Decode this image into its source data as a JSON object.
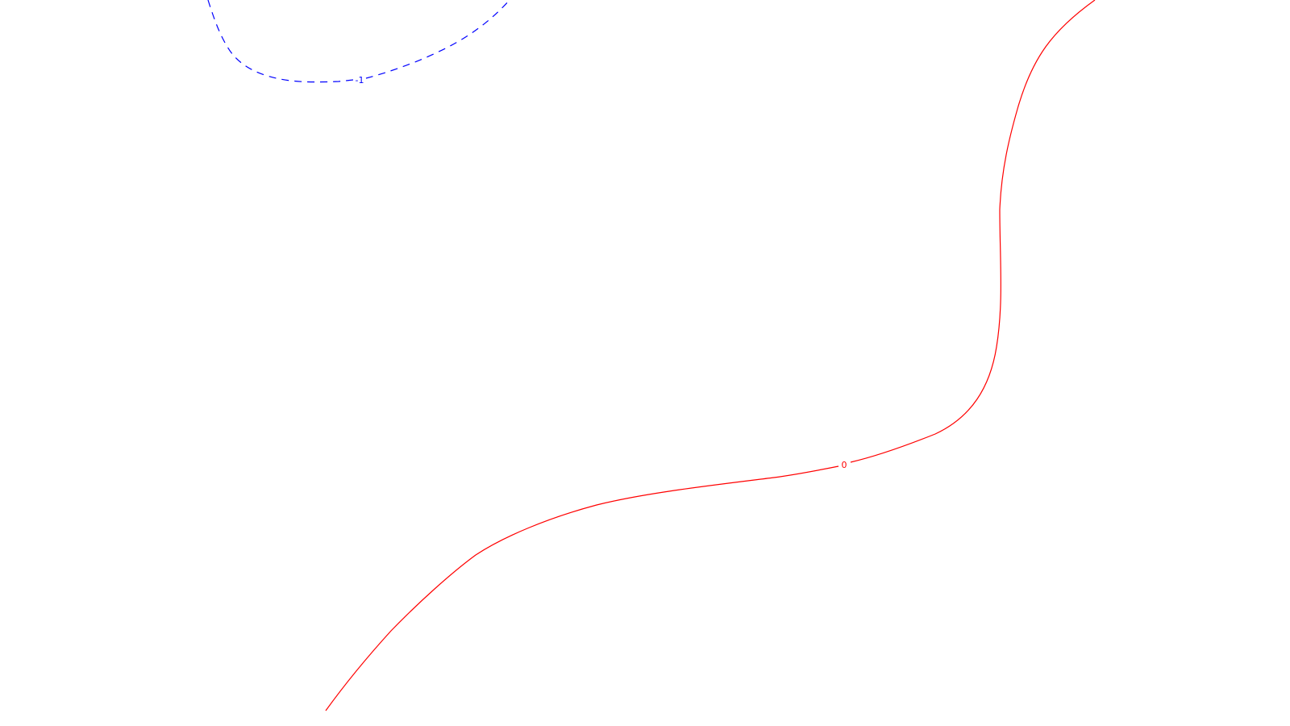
{
  "contours": [
    {
      "label": "-1",
      "color": "#0000ff",
      "style": "dashed"
    },
    {
      "label": "0",
      "color": "#ff0000",
      "style": "solid"
    }
  ]
}
